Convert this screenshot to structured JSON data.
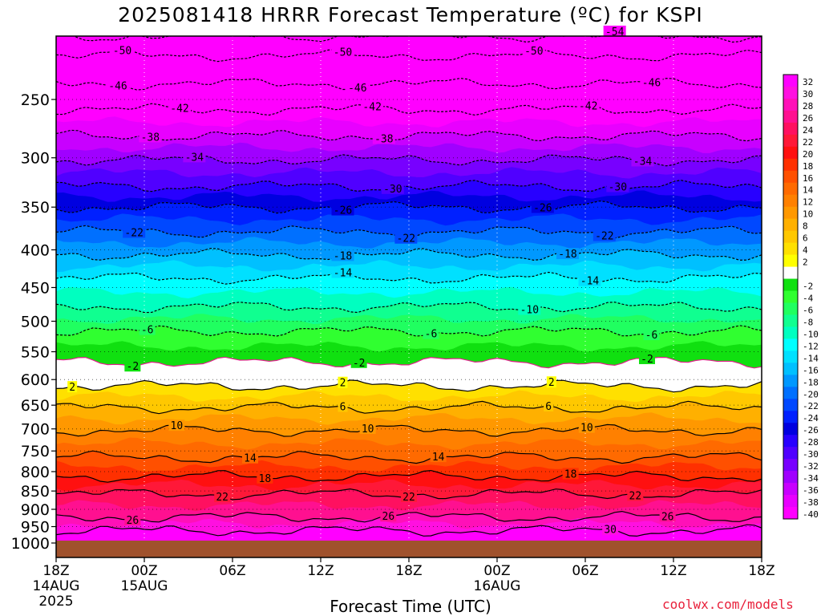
{
  "title": "2025081418 HRRR Forecast Temperature (ºC) for KSPI",
  "credit": "coolwx.com/models",
  "chart_data": {
    "type": "heatmap",
    "title": "2025081418 HRRR Forecast Temperature (ºC) for KSPI",
    "xlabel": "Forecast Time (UTC)",
    "ylabel": "",
    "x_ticks": [
      {
        "hour": 0,
        "lines": [
          "18Z",
          "14AUG",
          "2025"
        ]
      },
      {
        "hour": 6,
        "lines": [
          "00Z",
          "15AUG"
        ]
      },
      {
        "hour": 12,
        "lines": [
          "06Z"
        ]
      },
      {
        "hour": 18,
        "lines": [
          "12Z"
        ]
      },
      {
        "hour": 24,
        "lines": [
          "18Z"
        ]
      },
      {
        "hour": 30,
        "lines": [
          "00Z",
          "16AUG"
        ]
      },
      {
        "hour": 36,
        "lines": [
          "06Z"
        ]
      },
      {
        "hour": 42,
        "lines": [
          "12Z"
        ]
      },
      {
        "hour": 48,
        "lines": [
          "18Z"
        ]
      }
    ],
    "xlim": [
      0,
      48
    ],
    "y_ticks": [
      "250",
      "300",
      "350",
      "400",
      "450",
      "500",
      "550",
      "600",
      "650",
      "700",
      "750",
      "800",
      "850",
      "900",
      "950",
      "1000"
    ],
    "ylim": [
      1000,
      200
    ],
    "surface_color": "#a0522d",
    "colorbar": [
      {
        "label": "32",
        "color": "#ff00ff"
      },
      {
        "label": "30",
        "color": "#ff10e0"
      },
      {
        "label": "28",
        "color": "#ff10b8"
      },
      {
        "label": "26",
        "color": "#ff1090"
      },
      {
        "label": "24",
        "color": "#ff1060"
      },
      {
        "label": "22",
        "color": "#ff1838"
      },
      {
        "label": "20",
        "color": "#ff1010"
      },
      {
        "label": "18",
        "color": "#ff3000"
      },
      {
        "label": "16",
        "color": "#ff5000"
      },
      {
        "label": "14",
        "color": "#ff6a00"
      },
      {
        "label": "12",
        "color": "#ff8000"
      },
      {
        "label": "10",
        "color": "#ff9800"
      },
      {
        "label": "8",
        "color": "#ffb000"
      },
      {
        "label": "6",
        "color": "#ffc800"
      },
      {
        "label": "4",
        "color": "#ffe000"
      },
      {
        "label": "2",
        "color": "#ffff00"
      },
      {
        "label": "",
        "color": "#ffffff"
      },
      {
        "label": "-2",
        "color": "#10e010"
      },
      {
        "label": "-4",
        "color": "#30ff30"
      },
      {
        "label": "-6",
        "color": "#20ff60"
      },
      {
        "label": "-8",
        "color": "#10ff90"
      },
      {
        "label": "-10",
        "color": "#00ffc0"
      },
      {
        "label": "-12",
        "color": "#00ffff"
      },
      {
        "label": "-14",
        "color": "#00e0ff"
      },
      {
        "label": "-16",
        "color": "#00c0ff"
      },
      {
        "label": "-18",
        "color": "#0098ff"
      },
      {
        "label": "-20",
        "color": "#0070ff"
      },
      {
        "label": "-22",
        "color": "#0048ff"
      },
      {
        "label": "-24",
        "color": "#0020ff"
      },
      {
        "label": "-26",
        "color": "#0000e0"
      },
      {
        "label": "-28",
        "color": "#2800ff"
      },
      {
        "label": "-30",
        "color": "#5000ff"
      },
      {
        "label": "-32",
        "color": "#7800ff"
      },
      {
        "label": "-34",
        "color": "#a000ff"
      },
      {
        "label": "-36",
        "color": "#c800ff"
      },
      {
        "label": "-38",
        "color": "#e800ff"
      },
      {
        "label": "-40",
        "color": "#ff00ff"
      }
    ],
    "contour_levels": [
      {
        "temp": -54,
        "pressure": 205
      },
      {
        "temp": -50,
        "pressure": 218
      },
      {
        "temp": -46,
        "pressure": 238
      },
      {
        "temp": -42,
        "pressure": 258
      },
      {
        "temp": -38,
        "pressure": 280
      },
      {
        "temp": -34,
        "pressure": 302
      },
      {
        "temp": -30,
        "pressure": 328
      },
      {
        "temp": -26,
        "pressure": 350
      },
      {
        "temp": -22,
        "pressure": 378
      },
      {
        "temp": -18,
        "pressure": 406
      },
      {
        "temp": -14,
        "pressure": 437
      },
      {
        "temp": -10,
        "pressure": 478
      },
      {
        "temp": -6,
        "pressure": 516
      },
      {
        "temp": -2,
        "pressure": 568
      },
      {
        "temp": 2,
        "pressure": 612
      },
      {
        "temp": 6,
        "pressure": 655
      },
      {
        "temp": 10,
        "pressure": 703
      },
      {
        "temp": 14,
        "pressure": 765
      },
      {
        "temp": 18,
        "pressure": 812
      },
      {
        "temp": 22,
        "pressure": 858
      },
      {
        "temp": 26,
        "pressure": 922
      },
      {
        "temp": 30,
        "pressure": 962
      }
    ],
    "contour_labels": [
      {
        "text": "-50",
        "hour": 4.5,
        "temp": -50
      },
      {
        "text": "-50",
        "hour": 19.5,
        "temp": -50
      },
      {
        "text": "-50",
        "hour": 32.5,
        "temp": -50
      },
      {
        "text": "-54",
        "hour": 38.0,
        "temp": -54
      },
      {
        "text": "-46",
        "hour": 4.2,
        "temp": -46
      },
      {
        "text": "-46",
        "hour": 20.5,
        "temp": -46
      },
      {
        "text": "-46",
        "hour": 40.5,
        "temp": -46
      },
      {
        "text": "-42",
        "hour": 8.4,
        "temp": -42
      },
      {
        "text": "-42",
        "hour": 21.5,
        "temp": -42
      },
      {
        "text": "-42",
        "hour": 36.2,
        "temp": -42
      },
      {
        "text": "-38",
        "hour": 6.4,
        "temp": -38
      },
      {
        "text": "-38",
        "hour": 22.3,
        "temp": -38
      },
      {
        "text": "-34",
        "hour": 9.4,
        "temp": -34
      },
      {
        "text": "-34",
        "hour": 39.9,
        "temp": -34
      },
      {
        "text": "-30",
        "hour": 22.9,
        "temp": -30
      },
      {
        "text": "-30",
        "hour": 38.2,
        "temp": -30
      },
      {
        "text": "-26",
        "hour": 19.5,
        "temp": -26
      },
      {
        "text": "-26",
        "hour": 33.1,
        "temp": -26
      },
      {
        "text": "-22",
        "hour": 5.3,
        "temp": -22
      },
      {
        "text": "-22",
        "hour": 23.8,
        "temp": -22
      },
      {
        "text": "-22",
        "hour": 37.3,
        "temp": -22
      },
      {
        "text": "-18",
        "hour": 19.5,
        "temp": -18
      },
      {
        "text": "-18",
        "hour": 34.8,
        "temp": -18
      },
      {
        "text": "-14",
        "hour": 19.5,
        "temp": -14
      },
      {
        "text": "-14",
        "hour": 36.3,
        "temp": -14
      },
      {
        "text": "-10",
        "hour": 32.2,
        "temp": -10
      },
      {
        "text": "-6",
        "hour": 6.2,
        "temp": -6
      },
      {
        "text": "-6",
        "hour": 25.5,
        "temp": -6
      },
      {
        "text": "-6",
        "hour": 40.5,
        "temp": -6
      },
      {
        "text": "-2",
        "hour": 5.2,
        "temp": -2
      },
      {
        "text": "-2",
        "hour": 20.6,
        "temp": -2
      },
      {
        "text": "-2",
        "hour": 40.2,
        "temp": -2
      },
      {
        "text": "2",
        "hour": 1.1,
        "temp": 2
      },
      {
        "text": "2",
        "hour": 19.5,
        "temp": 2
      },
      {
        "text": "2",
        "hour": 33.7,
        "temp": 2
      },
      {
        "text": "6",
        "hour": 19.5,
        "temp": 6
      },
      {
        "text": "6",
        "hour": 33.5,
        "temp": 6
      },
      {
        "text": "10",
        "hour": 8.2,
        "temp": 10
      },
      {
        "text": "10",
        "hour": 21.2,
        "temp": 10
      },
      {
        "text": "10",
        "hour": 36.1,
        "temp": 10
      },
      {
        "text": "14",
        "hour": 13.2,
        "temp": 14
      },
      {
        "text": "14",
        "hour": 26.0,
        "temp": 14
      },
      {
        "text": "18",
        "hour": 14.2,
        "temp": 18
      },
      {
        "text": "18",
        "hour": 35.0,
        "temp": 18
      },
      {
        "text": "22",
        "hour": 11.3,
        "temp": 22
      },
      {
        "text": "22",
        "hour": 24.0,
        "temp": 22
      },
      {
        "text": "22",
        "hour": 39.4,
        "temp": 22
      },
      {
        "text": "26",
        "hour": 5.2,
        "temp": 26
      },
      {
        "text": "26",
        "hour": 22.6,
        "temp": 26
      },
      {
        "text": "26",
        "hour": 41.6,
        "temp": 26
      },
      {
        "text": "30",
        "hour": 37.7,
        "temp": 30
      }
    ],
    "grid": true,
    "legend": "right (colorbar)"
  }
}
